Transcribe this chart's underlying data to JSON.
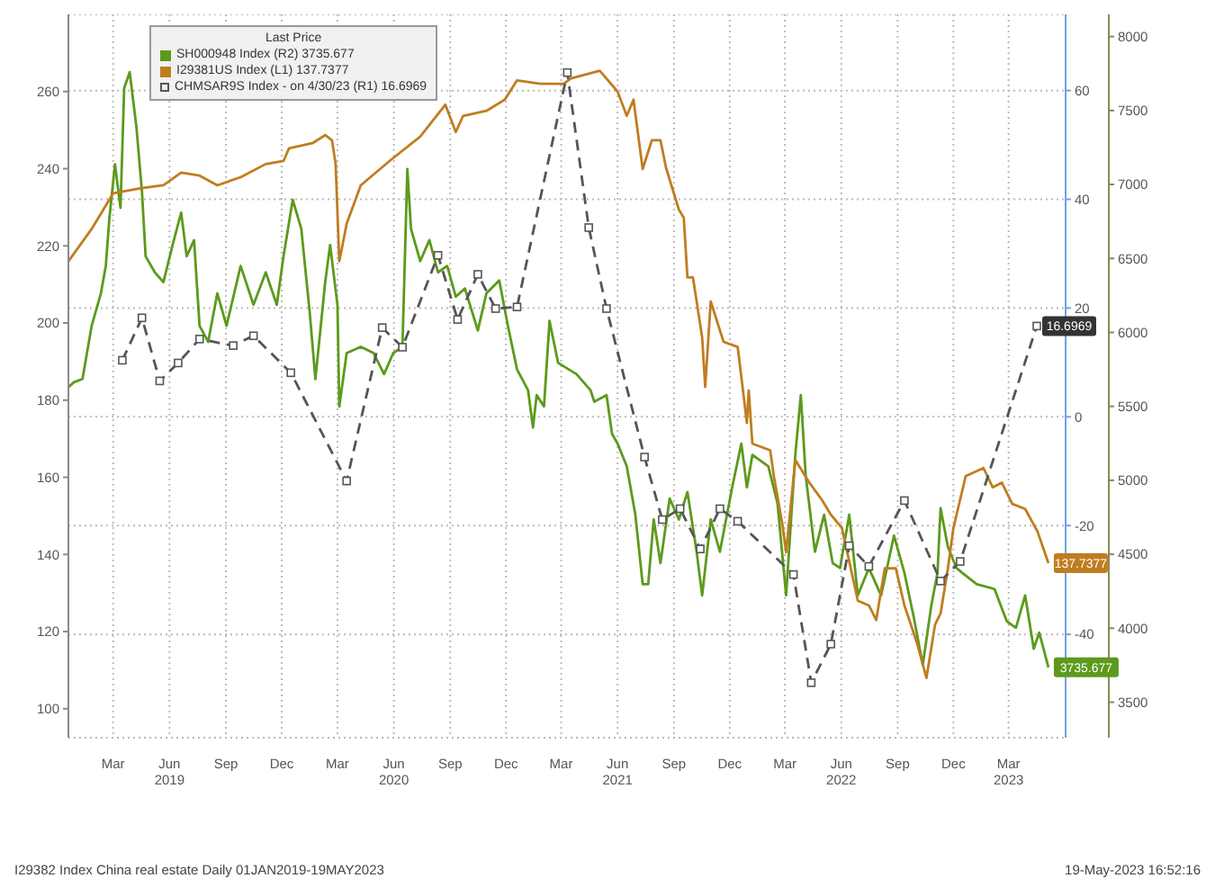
{
  "chart_data": {
    "type": "line",
    "legend_title": "Last Price",
    "legend": "top left",
    "grid": true,
    "xlim": [
      "2019-01-01",
      "2023-06-16"
    ],
    "xticks": [
      {
        "value": "2019-03-15",
        "label": "Mar"
      },
      {
        "value": "2019-06-15",
        "label": "Jun\n2019"
      },
      {
        "value": "2019-09-15",
        "label": "Sep"
      },
      {
        "value": "2019-12-15",
        "label": "Dec"
      },
      {
        "value": "2020-03-15",
        "label": "Mar"
      },
      {
        "value": "2020-06-15",
        "label": "Jun\n2020"
      },
      {
        "value": "2020-09-15",
        "label": "Sep"
      },
      {
        "value": "2020-12-15",
        "label": "Dec"
      },
      {
        "value": "2021-03-15",
        "label": "Mar"
      },
      {
        "value": "2021-06-15",
        "label": "Jun\n2021"
      },
      {
        "value": "2021-09-15",
        "label": "Sep"
      },
      {
        "value": "2021-12-15",
        "label": "Dec"
      },
      {
        "value": "2022-03-15",
        "label": "Mar"
      },
      {
        "value": "2022-06-15",
        "label": "Jun\n2022"
      },
      {
        "value": "2022-09-15",
        "label": "Sep"
      },
      {
        "value": "2022-12-15",
        "label": "Dec"
      },
      {
        "value": "2023-03-15",
        "label": "Mar\n2023"
      }
    ],
    "ylim": [
      92.5,
      280
    ],
    "yticks": [
      100,
      120,
      140,
      160,
      180,
      200,
      220,
      240,
      260
    ],
    "y2lim": [
      -59,
      74
    ],
    "y2ticks": [
      -40,
      -20,
      0,
      20,
      40,
      60
    ],
    "y3lim": [
      3260,
      8150
    ],
    "y3ticks": [
      3500,
      4000,
      4500,
      5000,
      5500,
      6000,
      6500,
      7000,
      7500,
      8000
    ],
    "annotations": [
      "I29382 Index China real estate Daily 01JAN2019-19MAY2023",
      "19-May-2023 16:52:16"
    ],
    "series": [
      {
        "name": "SH000948 Index (R2) 3735.677",
        "color": "#5c9a1c",
        "axis": "y3",
        "x": [
          "2019-01-01",
          "2019-01-10",
          "2019-01-24",
          "2019-02-08",
          "2019-02-23",
          "2019-03-03",
          "2019-03-09",
          "2019-03-18",
          "2019-03-27",
          "2019-04-02",
          "2019-04-11",
          "2019-04-22",
          "2019-05-01",
          "2019-05-07",
          "2019-05-22",
          "2019-06-05",
          "2019-06-20",
          "2019-07-04",
          "2019-07-13",
          "2019-07-25",
          "2019-08-03",
          "2019-08-17",
          "2019-09-01",
          "2019-09-16",
          "2019-10-09",
          "2019-10-30",
          "2019-11-19",
          "2019-12-07",
          "2019-12-18",
          "2020-01-02",
          "2020-01-16",
          "2020-01-30",
          "2020-02-08",
          "2020-02-24",
          "2020-03-03",
          "2020-03-15",
          "2020-03-18",
          "2020-03-30",
          "2020-04-22",
          "2020-05-13",
          "2020-05-30",
          "2020-06-14",
          "2020-06-29",
          "2020-07-07",
          "2020-07-13",
          "2020-07-28",
          "2020-08-12",
          "2020-08-26",
          "2020-09-10",
          "2020-09-24",
          "2020-10-09",
          "2020-10-30",
          "2020-11-13",
          "2020-12-04",
          "2020-12-18",
          "2021-01-02",
          "2021-01-20",
          "2021-01-28",
          "2021-02-03",
          "2021-02-15",
          "2021-02-24",
          "2021-03-10",
          "2021-04-09",
          "2021-05-02",
          "2021-05-08",
          "2021-05-28",
          "2021-06-06",
          "2021-06-15",
          "2021-06-30",
          "2021-07-14",
          "2021-07-26",
          "2021-08-04",
          "2021-08-13",
          "2021-08-24",
          "2021-09-08",
          "2021-09-23",
          "2021-10-07",
          "2021-10-22",
          "2021-10-31",
          "2021-11-14",
          "2021-11-29",
          "2021-12-19",
          "2022-01-03",
          "2022-01-12",
          "2022-01-21",
          "2022-02-16",
          "2022-03-03",
          "2022-03-17",
          "2022-04-01",
          "2022-04-10",
          "2022-04-18",
          "2022-05-03",
          "2022-05-18",
          "2022-06-01",
          "2022-06-13",
          "2022-06-28",
          "2022-07-12",
          "2022-07-30",
          "2022-08-19",
          "2022-09-09",
          "2022-09-26",
          "2022-10-11",
          "2022-10-26",
          "2022-11-09",
          "2022-11-19",
          "2022-11-24",
          "2022-12-06",
          "2022-12-20",
          "2022-12-29",
          "2023-01-22",
          "2023-02-20",
          "2023-03-12",
          "2023-03-27",
          "2023-04-11",
          "2023-04-25",
          "2023-05-04",
          "2023-05-19"
        ],
        "values": [
          5630,
          5663,
          5685,
          6045,
          6264,
          6449,
          6777,
          7137,
          6842,
          7651,
          7760,
          7388,
          6952,
          6515,
          6406,
          6340,
          6591,
          6810,
          6515,
          6624,
          6045,
          5936,
          6264,
          6045,
          6449,
          6187,
          6406,
          6187,
          6515,
          6897,
          6700,
          6122,
          5685,
          6340,
          6591,
          6187,
          5499,
          5860,
          5903,
          5860,
          5718,
          5860,
          5903,
          7105,
          6700,
          6482,
          6624,
          6406,
          6449,
          6242,
          6297,
          6013,
          6264,
          6351,
          6045,
          5750,
          5608,
          5357,
          5576,
          5499,
          6078,
          5794,
          5718,
          5608,
          5532,
          5576,
          5314,
          5248,
          5095,
          4768,
          4298,
          4298,
          4735,
          4440,
          4877,
          4735,
          4921,
          4517,
          4222,
          4735,
          4517,
          4953,
          5248,
          4953,
          5172,
          5095,
          4844,
          4222,
          5172,
          5576,
          5030,
          4517,
          4768,
          4440,
          4407,
          4768,
          4222,
          4407,
          4222,
          4626,
          4375,
          4080,
          3752,
          4156,
          4375,
          4811,
          4549,
          4407,
          4375,
          4298,
          4265,
          4047,
          4003,
          4222,
          3861,
          3970,
          3735.677
        ],
        "value_labels": [
          null,
          null,
          null,
          null,
          null,
          null,
          null,
          null,
          null,
          null,
          null,
          null,
          null,
          null,
          null,
          null,
          null,
          null,
          null,
          null,
          null,
          null,
          null,
          null,
          null,
          null,
          null,
          null,
          null,
          null,
          null,
          null,
          null,
          null,
          null,
          null,
          null,
          null,
          null,
          null,
          null,
          null,
          null,
          null,
          null,
          null,
          null,
          null,
          null,
          null,
          null,
          null,
          null,
          null,
          null,
          null,
          null,
          null,
          null,
          null,
          null,
          null,
          null,
          null,
          null,
          null,
          null,
          null,
          null,
          null,
          null,
          null,
          null,
          null,
          null,
          null,
          null,
          null,
          null,
          null,
          null,
          null,
          null,
          null,
          null,
          null,
          null,
          null,
          null,
          null,
          null,
          null,
          null,
          null,
          null,
          null,
          null,
          null,
          null,
          null,
          null,
          null,
          null,
          null,
          null,
          null,
          null,
          null,
          null,
          null,
          null,
          null,
          null,
          null,
          null,
          null,
          "3735.677"
        ]
      },
      {
        "name": "I29381US Index (L1) 137.7377",
        "color": "#c07d20",
        "axis": "y",
        "x": [
          "2019-01-01",
          "2019-02-08",
          "2019-03-15",
          "2019-04-28",
          "2019-06-05",
          "2019-07-04",
          "2019-08-03",
          "2019-09-01",
          "2019-10-09",
          "2019-11-19",
          "2019-12-18",
          "2019-12-27",
          "2020-02-03",
          "2020-02-24",
          "2020-03-06",
          "2020-03-12",
          "2020-03-18",
          "2020-03-30",
          "2020-04-22",
          "2020-06-11",
          "2020-07-28",
          "2020-09-07",
          "2020-09-24",
          "2020-10-06",
          "2020-11-13",
          "2020-12-13",
          "2021-01-02",
          "2021-02-09",
          "2021-03-19",
          "2021-03-31",
          "2021-05-17",
          "2021-06-15",
          "2021-06-30",
          "2021-07-11",
          "2021-07-26",
          "2021-08-10",
          "2021-08-24",
          "2021-09-02",
          "2021-09-23",
          "2021-10-01",
          "2021-10-07",
          "2021-10-16",
          "2021-10-31",
          "2021-11-05",
          "2021-11-14",
          "2021-12-05",
          "2021-12-28",
          "2022-01-12",
          "2022-01-15",
          "2022-01-21",
          "2022-02-19",
          "2022-02-25",
          "2022-03-11",
          "2022-03-17",
          "2022-04-01",
          "2022-04-24",
          "2022-05-15",
          "2022-05-29",
          "2022-06-16",
          "2022-07-12",
          "2022-07-30",
          "2022-08-11",
          "2022-08-25",
          "2022-09-12",
          "2022-09-26",
          "2022-10-17",
          "2022-11-01",
          "2022-11-15",
          "2022-11-24",
          "2022-12-06",
          "2022-12-15",
          "2023-01-04",
          "2023-02-02",
          "2023-02-17",
          "2023-03-04",
          "2023-03-21",
          "2023-04-11",
          "2023-05-01",
          "2023-05-19"
        ],
        "values": [
          216,
          224.4,
          233.6,
          234.9,
          235.7,
          239,
          238.2,
          235.7,
          237.8,
          241.2,
          242,
          245.3,
          246.6,
          248.7,
          247.4,
          241.2,
          216,
          225.7,
          235.7,
          242.4,
          248.3,
          256.6,
          249.5,
          253.7,
          255,
          257.9,
          262.9,
          262,
          262,
          263.4,
          265.4,
          260,
          253.7,
          257.9,
          239.9,
          247.4,
          247.4,
          240.3,
          229.4,
          227.3,
          211.8,
          211.8,
          196.3,
          183.4,
          205.6,
          195.1,
          193.8,
          174.1,
          182.5,
          168.7,
          167,
          160.3,
          147.7,
          140.6,
          164.5,
          158.6,
          154,
          150.3,
          146.9,
          128,
          126.8,
          123,
          136.4,
          136.4,
          126.8,
          116.8,
          108,
          121.8,
          124.7,
          136.4,
          146.9,
          160.3,
          162.4,
          157.4,
          158.6,
          153.1,
          151.8,
          146,
          137.7377
        ],
        "value_labels": [
          null,
          null,
          null,
          null,
          null,
          null,
          null,
          null,
          null,
          null,
          null,
          null,
          null,
          null,
          null,
          null,
          null,
          null,
          null,
          null,
          null,
          null,
          null,
          null,
          null,
          null,
          null,
          null,
          null,
          null,
          null,
          null,
          null,
          null,
          null,
          null,
          null,
          null,
          null,
          null,
          null,
          null,
          null,
          null,
          null,
          null,
          null,
          null,
          null,
          null,
          null,
          null,
          null,
          null,
          null,
          null,
          null,
          null,
          null,
          null,
          null,
          null,
          null,
          null,
          null,
          null,
          null,
          null,
          null,
          null,
          null,
          null,
          null,
          null,
          null,
          null,
          null,
          null,
          "137.7377"
        ]
      },
      {
        "name": "CHMSAR9S Index - on 4/30/23 (R1) 16.6969",
        "color": "#555555",
        "axis": "y2",
        "line_style": "dashed",
        "marker": "square",
        "x": [
          "2019-03-30",
          "2019-05-01",
          "2019-05-30",
          "2019-06-29",
          "2019-08-03",
          "2019-09-27",
          "2019-10-30",
          "2019-12-30",
          "2020-03-30",
          "2020-05-27",
          "2020-06-29",
          "2020-08-26",
          "2020-09-27",
          "2020-10-30",
          "2020-11-28",
          "2021-01-02",
          "2021-03-25",
          "2021-04-29",
          "2021-05-28",
          "2021-07-29",
          "2021-08-27",
          "2021-09-25",
          "2021-10-28",
          "2021-11-29",
          "2021-12-28",
          "2022-03-29",
          "2022-04-27",
          "2022-05-29",
          "2022-06-28",
          "2022-07-30",
          "2022-09-26",
          "2022-11-24",
          "2022-12-26",
          "2023-04-30"
        ],
        "values": [
          10.4,
          18.2,
          6.6,
          9.9,
          14.3,
          13.1,
          14.9,
          8.1,
          -11.8,
          16.4,
          12.8,
          29.7,
          17.9,
          26.2,
          19.9,
          20.2,
          63.3,
          34.8,
          19.9,
          -7.4,
          -18.9,
          -16.9,
          -24.3,
          -16.9,
          -19.2,
          -29,
          -48.9,
          -41.8,
          -23.7,
          -27.5,
          -15.4,
          -30.2,
          -26.6,
          16.6969
        ],
        "value_labels": [
          null,
          null,
          null,
          null,
          null,
          null,
          null,
          null,
          null,
          null,
          null,
          null,
          null,
          null,
          null,
          null,
          null,
          null,
          null,
          null,
          null,
          null,
          null,
          null,
          null,
          null,
          null,
          null,
          null,
          null,
          null,
          null,
          null,
          "16.6969"
        ]
      }
    ]
  }
}
